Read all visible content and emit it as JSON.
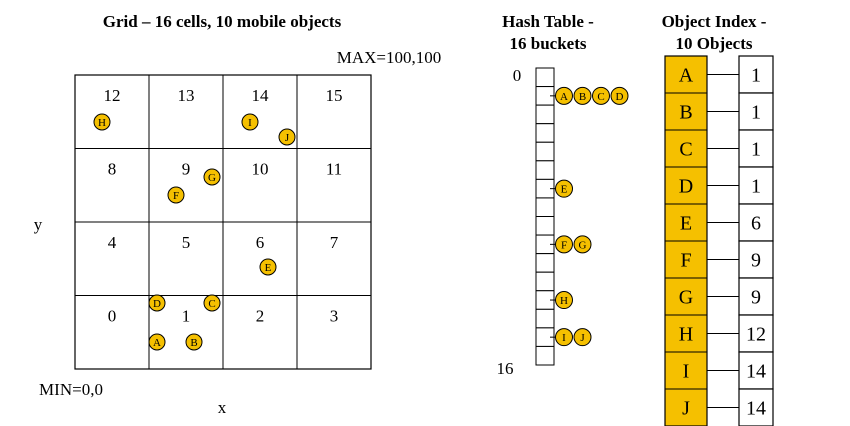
{
  "grid": {
    "title": "Grid – 16 cells, 10 mobile objects",
    "max_label": "MAX=100,100",
    "min_label": "MIN=0,0",
    "x_label": "x",
    "y_label": "y",
    "cell_numbers": [
      "0",
      "1",
      "2",
      "3",
      "4",
      "5",
      "6",
      "7",
      "8",
      "9",
      "10",
      "11",
      "12",
      "13",
      "14",
      "15"
    ],
    "objects": [
      {
        "label": "H",
        "cell": 12
      },
      {
        "label": "I",
        "cell": 14
      },
      {
        "label": "J",
        "cell": 14
      },
      {
        "label": "F",
        "cell": 9
      },
      {
        "label": "G",
        "cell": 9
      },
      {
        "label": "E",
        "cell": 6
      },
      {
        "label": "D",
        "cell": 1
      },
      {
        "label": "C",
        "cell": 1
      },
      {
        "label": "A",
        "cell": 1
      },
      {
        "label": "B",
        "cell": 1
      }
    ]
  },
  "hash_table": {
    "title_line1": "Hash Table -",
    "title_line2": "16 buckets",
    "top_label": "0",
    "bottom_label": "16",
    "bucket_count": 16,
    "entries": [
      {
        "bucket": 1,
        "objects": [
          "A",
          "B",
          "C",
          "D"
        ]
      },
      {
        "bucket": 6,
        "objects": [
          "E"
        ]
      },
      {
        "bucket": 9,
        "objects": [
          "F",
          "G"
        ]
      },
      {
        "bucket": 12,
        "objects": [
          "H"
        ]
      },
      {
        "bucket": 14,
        "objects": [
          "I",
          "J"
        ]
      }
    ]
  },
  "object_index": {
    "title_line1": "Object Index -",
    "title_line2": "10 Objects",
    "rows": [
      {
        "object": "A",
        "cell": "1"
      },
      {
        "object": "B",
        "cell": "1"
      },
      {
        "object": "C",
        "cell": "1"
      },
      {
        "object": "D",
        "cell": "1"
      },
      {
        "object": "E",
        "cell": "6"
      },
      {
        "object": "F",
        "cell": "9"
      },
      {
        "object": "G",
        "cell": "9"
      },
      {
        "object": "H",
        "cell": "12"
      },
      {
        "object": "I",
        "cell": "14"
      },
      {
        "object": "J",
        "cell": "14"
      }
    ]
  },
  "colors": {
    "object_fill": "#f5c000",
    "index_fill": "#f5c000",
    "stroke": "#000000",
    "text": "#000000"
  }
}
